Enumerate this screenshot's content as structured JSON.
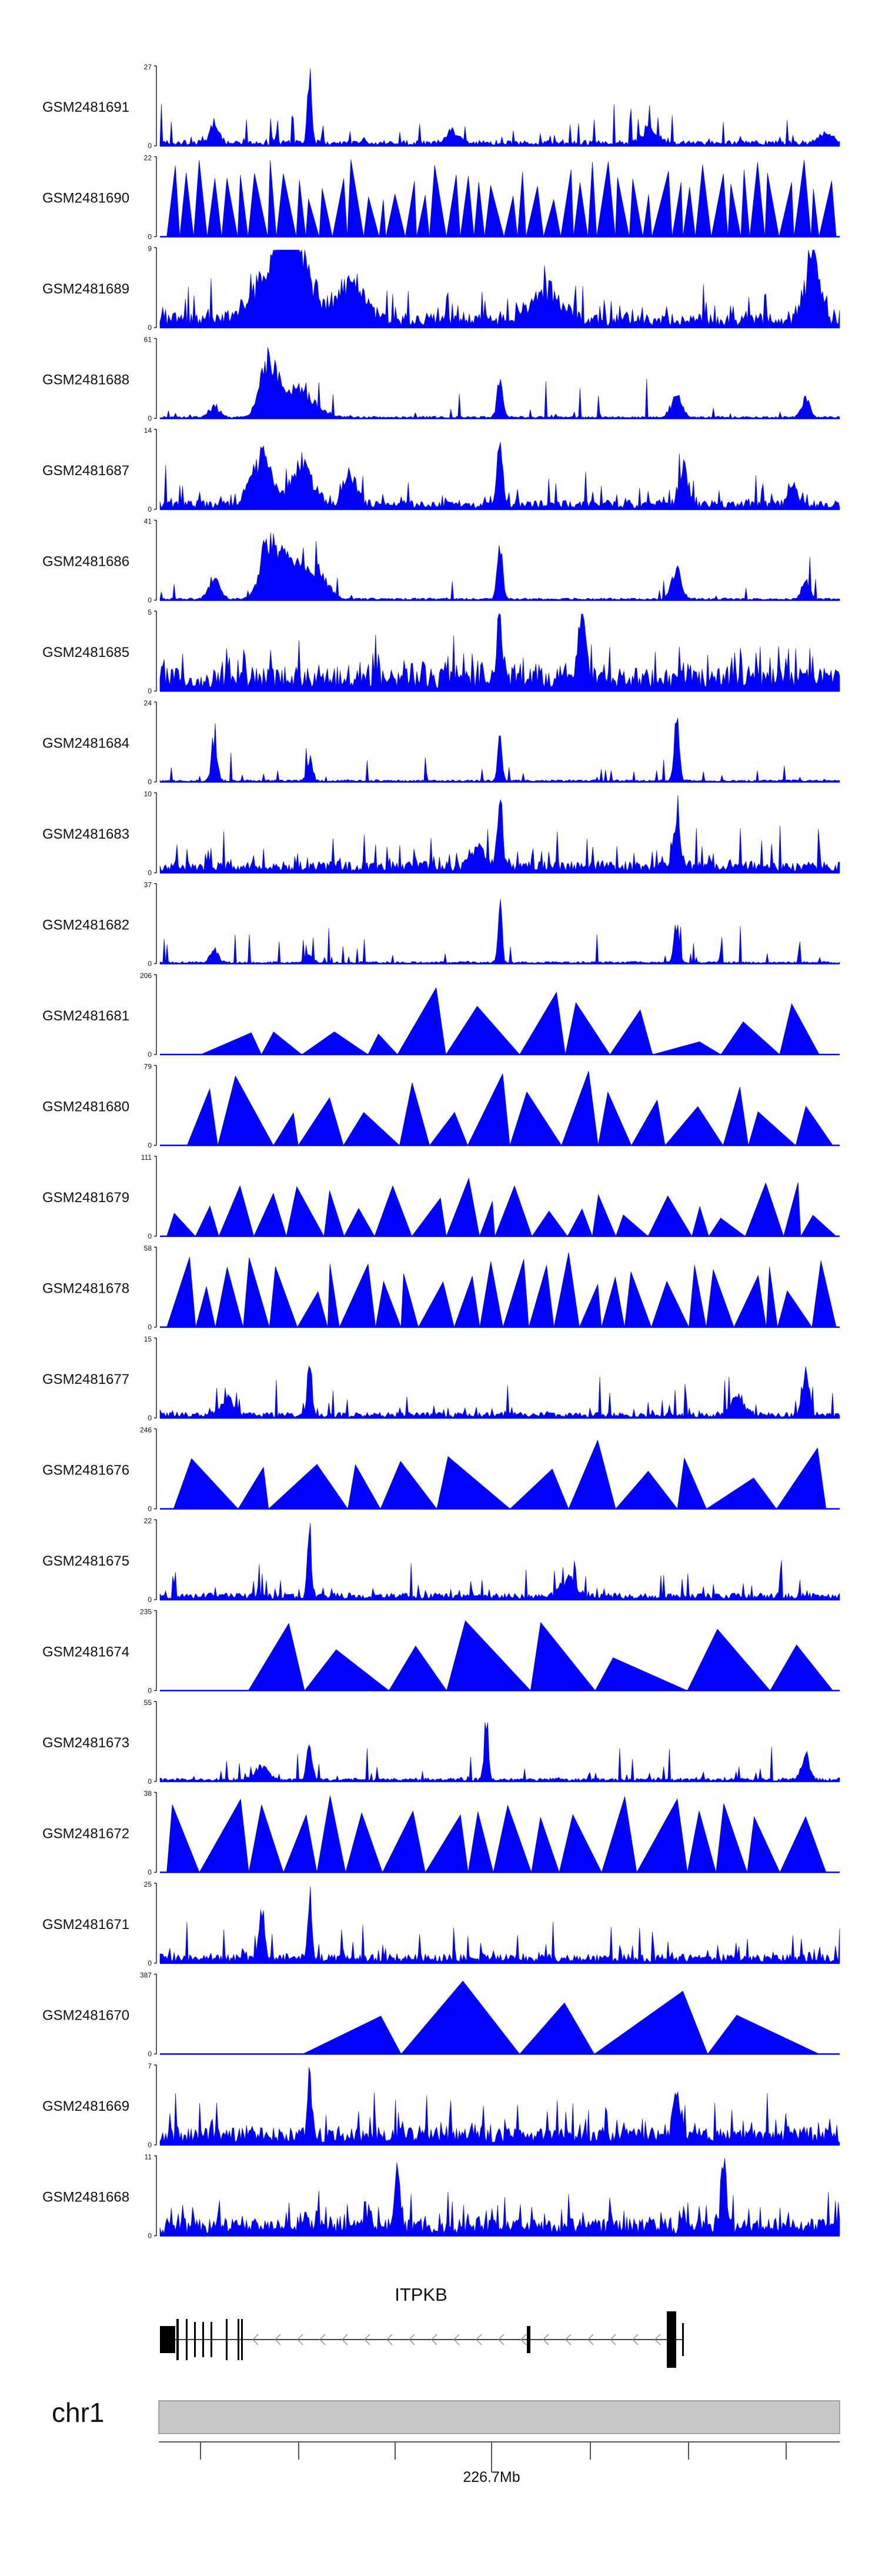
{
  "chart_data": {
    "type": "area",
    "title": "",
    "region": {
      "chromosome": "chr1",
      "center_label": "226.7Mb"
    },
    "gene": {
      "name": "ITPKB",
      "strand": "-"
    },
    "ylim_min": 0,
    "colors": {
      "signal": "#0000ff",
      "gene": "#000000",
      "ideogram": "#c8c8c8",
      "axis": "#000000"
    },
    "tracks": [
      {
        "name": "GSM2481691",
        "ymax": 27,
        "style": "noisy",
        "baseline": 0.05,
        "density": 0.3,
        "peaks": [
          [
            0.08,
            0.35,
            0.006
          ],
          [
            0.22,
            1.0,
            0.003
          ],
          [
            0.43,
            0.18,
            0.01
          ],
          [
            0.72,
            0.22,
            0.01
          ],
          [
            0.98,
            0.15,
            0.01
          ]
        ]
      },
      {
        "name": "GSM2481690",
        "ymax": 22,
        "style": "wedges",
        "n": 48,
        "seed": 3,
        "minH": 0.45,
        "maxH": 1.0
      },
      {
        "name": "GSM2481689",
        "ymax": 9,
        "style": "noisy",
        "baseline": 0.12,
        "density": 0.7,
        "peaks": [
          [
            0.17,
            0.8,
            0.03
          ],
          [
            0.2,
            0.9,
            0.02
          ],
          [
            0.28,
            0.6,
            0.02
          ],
          [
            0.57,
            0.5,
            0.02
          ],
          [
            0.96,
            1.0,
            0.01
          ]
        ]
      },
      {
        "name": "GSM2481688",
        "ymax": 61,
        "style": "noisy",
        "baseline": 0.02,
        "density": 0.15,
        "peaks": [
          [
            0.16,
            0.85,
            0.012
          ],
          [
            0.2,
            0.45,
            0.025
          ],
          [
            0.08,
            0.18,
            0.008
          ],
          [
            0.5,
            0.6,
            0.004
          ],
          [
            0.76,
            0.35,
            0.008
          ],
          [
            0.95,
            0.3,
            0.006
          ]
        ]
      },
      {
        "name": "GSM2481687",
        "ymax": 14,
        "style": "noisy",
        "baseline": 0.08,
        "density": 0.5,
        "peaks": [
          [
            0.15,
            0.75,
            0.015
          ],
          [
            0.21,
            0.65,
            0.015
          ],
          [
            0.28,
            0.5,
            0.01
          ],
          [
            0.5,
            1.0,
            0.004
          ],
          [
            0.77,
            0.6,
            0.006
          ],
          [
            0.93,
            0.4,
            0.006
          ]
        ]
      },
      {
        "name": "GSM2481686",
        "ymax": 41,
        "style": "noisy",
        "baseline": 0.02,
        "density": 0.15,
        "peaks": [
          [
            0.16,
            0.9,
            0.012
          ],
          [
            0.19,
            0.65,
            0.015
          ],
          [
            0.23,
            0.5,
            0.015
          ],
          [
            0.08,
            0.35,
            0.008
          ],
          [
            0.5,
            0.85,
            0.004
          ],
          [
            0.76,
            0.5,
            0.007
          ],
          [
            0.95,
            0.3,
            0.006
          ]
        ]
      },
      {
        "name": "GSM2481685",
        "ymax": 5,
        "style": "noisy",
        "baseline": 0.2,
        "density": 0.9,
        "peaks": [
          [
            0.5,
            1.0,
            0.004
          ],
          [
            0.62,
            0.8,
            0.006
          ]
        ]
      },
      {
        "name": "GSM2481684",
        "ymax": 24,
        "style": "noisy",
        "baseline": 0.02,
        "density": 0.2,
        "peaks": [
          [
            0.08,
            0.75,
            0.004
          ],
          [
            0.22,
            0.35,
            0.004
          ],
          [
            0.5,
            0.95,
            0.003
          ],
          [
            0.76,
            0.9,
            0.004
          ]
        ]
      },
      {
        "name": "GSM2481683",
        "ymax": 10,
        "style": "noisy",
        "baseline": 0.1,
        "density": 0.6,
        "peaks": [
          [
            0.5,
            0.95,
            0.004
          ],
          [
            0.47,
            0.3,
            0.01
          ],
          [
            0.76,
            0.8,
            0.005
          ]
        ]
      },
      {
        "name": "GSM2481682",
        "ymax": 37,
        "style": "noisy",
        "baseline": 0.02,
        "density": 0.2,
        "peaks": [
          [
            0.08,
            0.2,
            0.006
          ],
          [
            0.22,
            0.1,
            0.006
          ],
          [
            0.5,
            1.0,
            0.003
          ],
          [
            0.76,
            0.6,
            0.004
          ]
        ]
      },
      {
        "name": "GSM2481681",
        "ymax": 206,
        "style": "wedges",
        "n": 12,
        "seed": 11,
        "minH": 0.15,
        "maxH": 1.0,
        "start": 0.06,
        "end": 0.97
      },
      {
        "name": "GSM2481680",
        "ymax": 79,
        "style": "wedges",
        "n": 16,
        "seed": 17,
        "minH": 0.4,
        "maxH": 1.0,
        "start": 0.04,
        "end": 0.99
      },
      {
        "name": "GSM2481679",
        "ymax": 111,
        "style": "wedges",
        "n": 22,
        "seed": 23,
        "minH": 0.2,
        "maxH": 0.8
      },
      {
        "name": "GSM2481678",
        "ymax": 58,
        "style": "wedges",
        "n": 26,
        "seed": 29,
        "minH": 0.45,
        "maxH": 1.0
      },
      {
        "name": "GSM2481677",
        "ymax": 15,
        "style": "noisy",
        "baseline": 0.05,
        "density": 0.35,
        "peaks": [
          [
            0.22,
            1.0,
            0.003
          ],
          [
            0.95,
            0.8,
            0.005
          ],
          [
            0.1,
            0.25,
            0.01
          ],
          [
            0.85,
            0.3,
            0.01
          ]
        ]
      },
      {
        "name": "GSM2481676",
        "ymax": 246,
        "style": "wedges",
        "n": 12,
        "seed": 31,
        "minH": 0.25,
        "maxH": 1.0,
        "start": 0.02,
        "end": 0.98
      },
      {
        "name": "GSM2481675",
        "ymax": 22,
        "style": "noisy",
        "baseline": 0.06,
        "density": 0.4,
        "peaks": [
          [
            0.22,
            1.0,
            0.003
          ],
          [
            0.6,
            0.3,
            0.01
          ]
        ]
      },
      {
        "name": "GSM2481674",
        "ymax": 235,
        "style": "wedges",
        "n": 8,
        "seed": 37,
        "minH": 0.35,
        "maxH": 1.0,
        "start": 0.13,
        "end": 0.99
      },
      {
        "name": "GSM2481673",
        "ymax": 55,
        "style": "noisy",
        "baseline": 0.03,
        "density": 0.3,
        "peaks": [
          [
            0.22,
            0.6,
            0.004
          ],
          [
            0.48,
            1.0,
            0.003
          ],
          [
            0.15,
            0.2,
            0.01
          ],
          [
            0.95,
            0.4,
            0.006
          ]
        ]
      },
      {
        "name": "GSM2481672",
        "ymax": 38,
        "style": "wedges",
        "n": 18,
        "seed": 41,
        "minH": 0.7,
        "maxH": 1.0,
        "start": 0.01,
        "end": 0.98
      },
      {
        "name": "GSM2481671",
        "ymax": 25,
        "style": "noisy",
        "baseline": 0.08,
        "density": 0.5,
        "peaks": [
          [
            0.15,
            0.8,
            0.004
          ],
          [
            0.22,
            1.0,
            0.003
          ]
        ]
      },
      {
        "name": "GSM2481670",
        "ymax": 387,
        "style": "wedges",
        "n": 5,
        "seed": 43,
        "minH": 0.35,
        "maxH": 1.0,
        "start": 0.21,
        "end": 0.97
      },
      {
        "name": "GSM2481669",
        "ymax": 7,
        "style": "noisy",
        "baseline": 0.15,
        "density": 0.8,
        "peaks": [
          [
            0.22,
            1.0,
            0.003
          ],
          [
            0.76,
            0.7,
            0.005
          ]
        ]
      },
      {
        "name": "GSM2481668",
        "ymax": 11,
        "style": "noisy",
        "baseline": 0.15,
        "density": 0.8,
        "peaks": [
          [
            0.35,
            0.9,
            0.004
          ],
          [
            0.83,
            0.85,
            0.004
          ]
        ]
      }
    ]
  }
}
